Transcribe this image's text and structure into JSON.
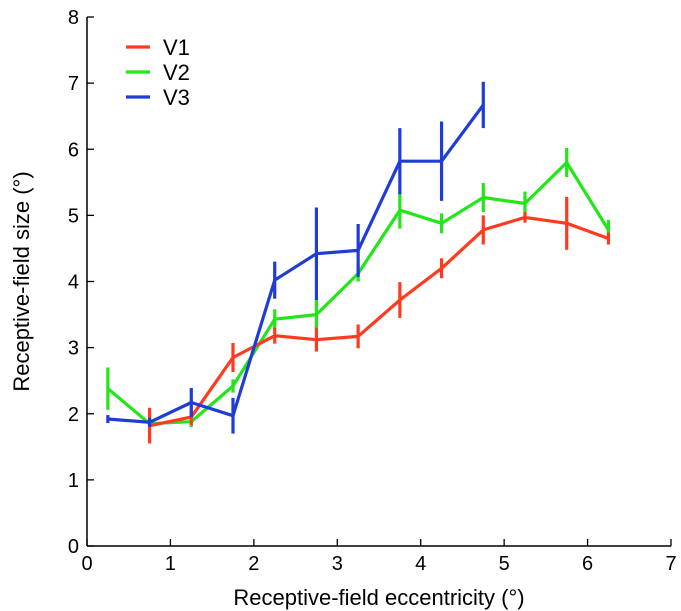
{
  "chart_data": {
    "type": "line",
    "title": "",
    "xlabel": "Receptive-field eccentricity (°)",
    "ylabel": "Receptive-field size (°)",
    "xlim": [
      0,
      7
    ],
    "ylim": [
      0,
      8
    ],
    "xticks": [
      0,
      1,
      2,
      3,
      4,
      5,
      6,
      7
    ],
    "yticks": [
      0,
      1,
      2,
      3,
      4,
      5,
      6,
      7,
      8
    ],
    "grid": false,
    "legend_position": "top-left",
    "series": [
      {
        "name": "V1",
        "color": "#ff3a1f",
        "x": [
          0.75,
          1.25,
          1.75,
          2.25,
          2.75,
          3.25,
          3.75,
          4.25,
          4.75,
          5.25,
          5.75,
          6.25
        ],
        "y": [
          1.82,
          1.95,
          2.85,
          3.18,
          3.12,
          3.17,
          3.72,
          4.2,
          4.78,
          4.97,
          4.88,
          4.65
        ],
        "err": [
          0.27,
          0.12,
          0.22,
          0.12,
          0.18,
          0.18,
          0.27,
          0.15,
          0.22,
          0.08,
          0.4,
          0.09
        ]
      },
      {
        "name": "V2",
        "color": "#22e61a",
        "x": [
          0.25,
          0.75,
          1.25,
          1.75,
          2.25,
          2.75,
          3.25,
          3.75,
          4.25,
          4.75,
          5.25,
          5.75,
          6.25
        ],
        "y": [
          2.38,
          1.85,
          1.88,
          2.42,
          3.43,
          3.5,
          4.12,
          5.08,
          4.88,
          5.27,
          5.18,
          5.8,
          4.78
        ],
        "err": [
          0.32,
          0.06,
          0.08,
          0.1,
          0.15,
          0.22,
          0.12,
          0.28,
          0.15,
          0.22,
          0.18,
          0.22,
          0.15
        ]
      },
      {
        "name": "V3",
        "color": "#1f3cd6",
        "x": [
          0.25,
          0.75,
          1.25,
          1.75,
          2.25,
          2.75,
          3.25,
          3.75,
          4.25,
          4.75
        ],
        "y": [
          1.92,
          1.87,
          2.17,
          1.97,
          4.02,
          4.42,
          4.47,
          5.82,
          5.82,
          6.67
        ],
        "err": [
          0.06,
          0.07,
          0.22,
          0.27,
          0.28,
          0.7,
          0.4,
          0.5,
          0.6,
          0.35
        ]
      }
    ]
  }
}
